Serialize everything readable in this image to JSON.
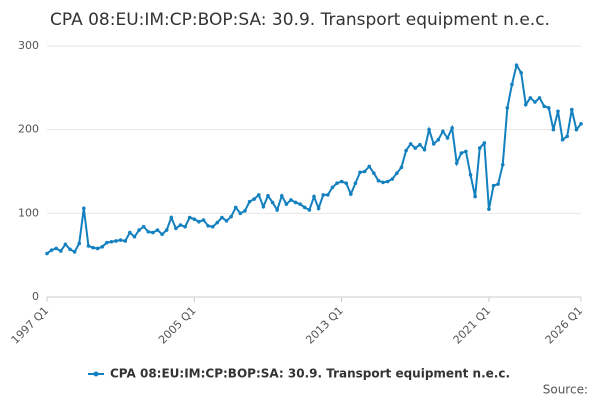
{
  "chart_data": {
    "type": "line",
    "title": "CPA 08:EU:IM:CP:BOP:SA: 30.9. Transport equipment n.e.c.",
    "source": "Source:",
    "categories": [
      "1997 Q1",
      null,
      null,
      null,
      null,
      null,
      null,
      null,
      null,
      null,
      null,
      null,
      null,
      null,
      null,
      null,
      null,
      null,
      null,
      null,
      null,
      null,
      null,
      null,
      null,
      null,
      null,
      null,
      null,
      null,
      null,
      null,
      "2005 Q1",
      null,
      null,
      null,
      null,
      null,
      null,
      null,
      null,
      null,
      null,
      null,
      null,
      null,
      null,
      null,
      null,
      null,
      null,
      null,
      null,
      null,
      null,
      null,
      null,
      null,
      null,
      null,
      null,
      null,
      null,
      null,
      "2013 Q1",
      null,
      null,
      null,
      null,
      null,
      null,
      null,
      null,
      null,
      null,
      null,
      null,
      null,
      null,
      null,
      null,
      null,
      null,
      null,
      null,
      null,
      null,
      null,
      null,
      null,
      null,
      null,
      null,
      null,
      null,
      null,
      "2021 Q1",
      null,
      null,
      null,
      null,
      null,
      null,
      null,
      null,
      null,
      null,
      null,
      null,
      null,
      null,
      null,
      null,
      null,
      null,
      null,
      "2026 Q1"
    ],
    "series": [
      {
        "name": "CPA 08:EU:IM:CP:BOP:SA: 30.9. Transport equipment n.e.c.",
        "color": "#1380bf",
        "values": [
          52,
          56,
          58,
          55,
          63,
          57,
          54,
          64,
          106,
          61,
          59,
          58,
          60,
          65,
          66,
          67,
          68,
          67,
          77,
          72,
          80,
          84,
          78,
          77,
          80,
          75,
          80,
          95,
          82,
          86,
          84,
          95,
          93,
          90,
          92,
          85,
          84,
          89,
          95,
          91,
          96,
          107,
          100,
          103,
          114,
          117,
          122,
          108,
          121,
          113,
          104,
          121,
          111,
          116,
          113,
          111,
          107,
          104,
          120,
          106,
          122,
          122,
          131,
          136,
          138,
          136,
          123,
          136,
          149,
          150,
          156,
          148,
          139,
          137,
          138,
          141,
          148,
          155,
          175,
          183,
          178,
          182,
          176,
          200,
          183,
          188,
          198,
          190,
          202,
          160,
          172,
          174,
          146,
          120,
          178,
          184,
          105,
          133,
          135,
          158,
          226,
          254,
          277,
          268,
          230,
          238,
          233,
          238,
          228,
          226,
          200,
          222,
          188,
          192,
          224,
          200,
          207
        ]
      }
    ],
    "ylim": [
      0,
      300
    ],
    "yticks": [
      0,
      100,
      200,
      300
    ],
    "grid": true
  }
}
